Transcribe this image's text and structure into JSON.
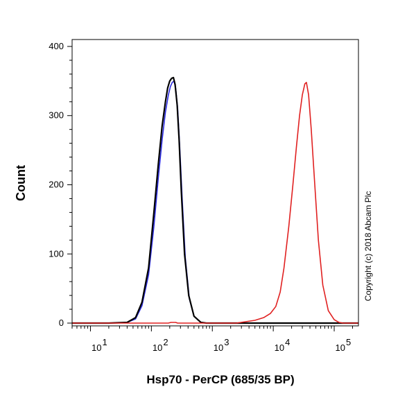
{
  "chart_data": {
    "type": "line",
    "xlabel": "Hsp70 - PerCP (685/35 BP)",
    "ylabel": "Count",
    "x_scale": "log",
    "xlim": [
      5,
      250000
    ],
    "ylim": [
      -4,
      410
    ],
    "x_ticks": [
      {
        "value": 10,
        "base": "10",
        "exp": "1"
      },
      {
        "value": 100,
        "base": "10",
        "exp": "2"
      },
      {
        "value": 1000,
        "base": "10",
        "exp": "3"
      },
      {
        "value": 10000,
        "base": "10",
        "exp": "4"
      },
      {
        "value": 100000,
        "base": "10",
        "exp": "5"
      }
    ],
    "y_ticks": [
      {
        "value": 0,
        "label": "0"
      },
      {
        "value": 100,
        "label": "100"
      },
      {
        "value": 200,
        "label": "200"
      },
      {
        "value": 300,
        "label": "300"
      },
      {
        "value": 400,
        "label": "400"
      }
    ],
    "grid": false,
    "legend": "none",
    "annotation": "Copyright (c) 2018 Abcam Plc",
    "series": [
      {
        "color": "#2a2ae0",
        "points": [
          [
            5,
            0
          ],
          [
            20,
            0
          ],
          [
            40,
            1
          ],
          [
            55,
            6
          ],
          [
            70,
            25
          ],
          [
            90,
            70
          ],
          [
            110,
            140
          ],
          [
            130,
            210
          ],
          [
            150,
            265
          ],
          [
            170,
            305
          ],
          [
            190,
            330
          ],
          [
            205,
            342
          ],
          [
            220,
            348
          ],
          [
            235,
            350
          ],
          [
            250,
            340
          ],
          [
            270,
            310
          ],
          [
            290,
            260
          ],
          [
            320,
            180
          ],
          [
            360,
            95
          ],
          [
            420,
            35
          ],
          [
            500,
            10
          ],
          [
            650,
            1
          ],
          [
            800,
            0
          ],
          [
            250000,
            0
          ]
        ]
      },
      {
        "color": "#000000",
        "points": [
          [
            5,
            0
          ],
          [
            20,
            0
          ],
          [
            40,
            1
          ],
          [
            55,
            8
          ],
          [
            70,
            30
          ],
          [
            90,
            80
          ],
          [
            110,
            160
          ],
          [
            130,
            230
          ],
          [
            150,
            285
          ],
          [
            170,
            320
          ],
          [
            185,
            340
          ],
          [
            200,
            350
          ],
          [
            215,
            354
          ],
          [
            230,
            355
          ],
          [
            245,
            345
          ],
          [
            265,
            315
          ],
          [
            285,
            265
          ],
          [
            310,
            190
          ],
          [
            350,
            100
          ],
          [
            410,
            40
          ],
          [
            500,
            10
          ],
          [
            650,
            1
          ],
          [
            800,
            0
          ],
          [
            250000,
            0
          ]
        ]
      },
      {
        "color": "#e02020",
        "points": [
          [
            5,
            0
          ],
          [
            190,
            0
          ],
          [
            210,
            1
          ],
          [
            250,
            1
          ],
          [
            270,
            0
          ],
          [
            2500,
            0
          ],
          [
            3500,
            2
          ],
          [
            5000,
            4
          ],
          [
            7000,
            8
          ],
          [
            9000,
            14
          ],
          [
            11000,
            24
          ],
          [
            13000,
            45
          ],
          [
            15000,
            80
          ],
          [
            18000,
            140
          ],
          [
            21000,
            200
          ],
          [
            24000,
            255
          ],
          [
            27000,
            300
          ],
          [
            30000,
            330
          ],
          [
            33000,
            346
          ],
          [
            35000,
            348
          ],
          [
            38000,
            330
          ],
          [
            42000,
            280
          ],
          [
            48000,
            200
          ],
          [
            55000,
            120
          ],
          [
            65000,
            55
          ],
          [
            80000,
            18
          ],
          [
            100000,
            5
          ],
          [
            120000,
            1
          ],
          [
            140000,
            0
          ],
          [
            250000,
            0
          ]
        ]
      }
    ]
  }
}
